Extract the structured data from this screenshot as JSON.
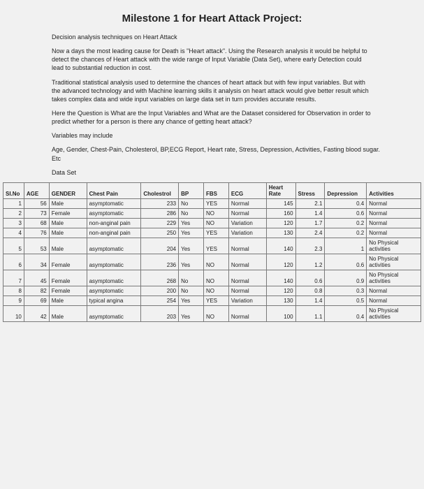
{
  "title": "Milestone 1 for Heart Attack Project:",
  "paragraphs": {
    "p1": "Decision analysis techniques on Heart Attack",
    "p2": "Now a days the most leading cause for Death is \"Heart attack\". Using the Research analysis it would be helpful to detect the chances of Heart attack with the wide range of Input Variable (Data Set), where early Detection could lead to substantial reduction in cost.",
    "p3": "Traditional statistical analysis used to determine the chances of heart attack but with few input variables. But with the advanced technology and with Machine learning skills it analysis on heart attack would give better result which takes complex data and wide input variables on large data set in turn provides accurate results.",
    "p4": "Here the Question is What are the Input Variables and What are the Dataset considered for Observation in order to predict whether for a person is there any chance of getting heart attack?",
    "p5": "Variables may include",
    "p6": "Age, Gender, Chest-Pain, Cholesterol, BP,ECG Report, Heart rate, Stress, Depression, Activities, Fasting blood sugar. Etc",
    "p7": "Data Set"
  },
  "table": {
    "columns": [
      "SI.No",
      "AGE",
      "GENDER",
      "Chest Pain",
      "Cholestrol",
      "BP",
      "FBS",
      "ECG",
      "Heart Rate",
      "Stress",
      "Depression",
      "Activities"
    ],
    "rows": [
      {
        "slno": "1",
        "age": "56",
        "gender": "Male",
        "chest": "asymptomatic",
        "chol": "233",
        "bp": "No",
        "fbs": "YES",
        "ecg": "Normal",
        "heart": "145",
        "stress": "2.1",
        "depr": "0.4",
        "act": "Normal"
      },
      {
        "slno": "2",
        "age": "73",
        "gender": "Female",
        "chest": "asymptomatic",
        "chol": "286",
        "bp": "No",
        "fbs": "NO",
        "ecg": "Normal",
        "heart": "160",
        "stress": "1.4",
        "depr": "0.6",
        "act": "Normal"
      },
      {
        "slno": "3",
        "age": "68",
        "gender": "Male",
        "chest": "non-anginal pain",
        "chol": "229",
        "bp": "Yes",
        "fbs": "NO",
        "ecg": "Variation",
        "heart": "120",
        "stress": "1.7",
        "depr": "0.2",
        "act": "Normal"
      },
      {
        "slno": "4",
        "age": "76",
        "gender": "Male",
        "chest": "non-anginal pain",
        "chol": "250",
        "bp": "Yes",
        "fbs": "YES",
        "ecg": "Variation",
        "heart": "130",
        "stress": "2.4",
        "depr": "0.2",
        "act": "Normal"
      },
      {
        "slno": "5",
        "age": "53",
        "gender": "Male",
        "chest": "asymptomatic",
        "chol": "204",
        "bp": "Yes",
        "fbs": "YES",
        "ecg": "Normal",
        "heart": "140",
        "stress": "2.3",
        "depr": "1",
        "act": "No Physical activities"
      },
      {
        "slno": "6",
        "age": "34",
        "gender": "Female",
        "chest": "asymptomatic",
        "chol": "236",
        "bp": "Yes",
        "fbs": "NO",
        "ecg": "Normal",
        "heart": "120",
        "stress": "1.2",
        "depr": "0.6",
        "act": "No Physical activities"
      },
      {
        "slno": "7",
        "age": "45",
        "gender": "Female",
        "chest": "asymptomatic",
        "chol": "268",
        "bp": "No",
        "fbs": "NO",
        "ecg": "Normal",
        "heart": "140",
        "stress": "0.6",
        "depr": "0.9",
        "act": "No Physical activities"
      },
      {
        "slno": "8",
        "age": "82",
        "gender": "Female",
        "chest": "asymptomatic",
        "chol": "200",
        "bp": "No",
        "fbs": "NO",
        "ecg": "Normal",
        "heart": "120",
        "stress": "0.8",
        "depr": "0.3",
        "act": "Normal"
      },
      {
        "slno": "9",
        "age": "69",
        "gender": "Male",
        "chest": "typical angina",
        "chol": "254",
        "bp": "Yes",
        "fbs": "YES",
        "ecg": "Variation",
        "heart": "130",
        "stress": "1.4",
        "depr": "0.5",
        "act": "Normal"
      },
      {
        "slno": "10",
        "age": "42",
        "gender": "Male",
        "chest": "asymptomatic",
        "chol": "203",
        "bp": "Yes",
        "fbs": "NO",
        "ecg": "Normal",
        "heart": "100",
        "stress": "1.1",
        "depr": "0.4",
        "act": "No Physical activities"
      }
    ]
  }
}
